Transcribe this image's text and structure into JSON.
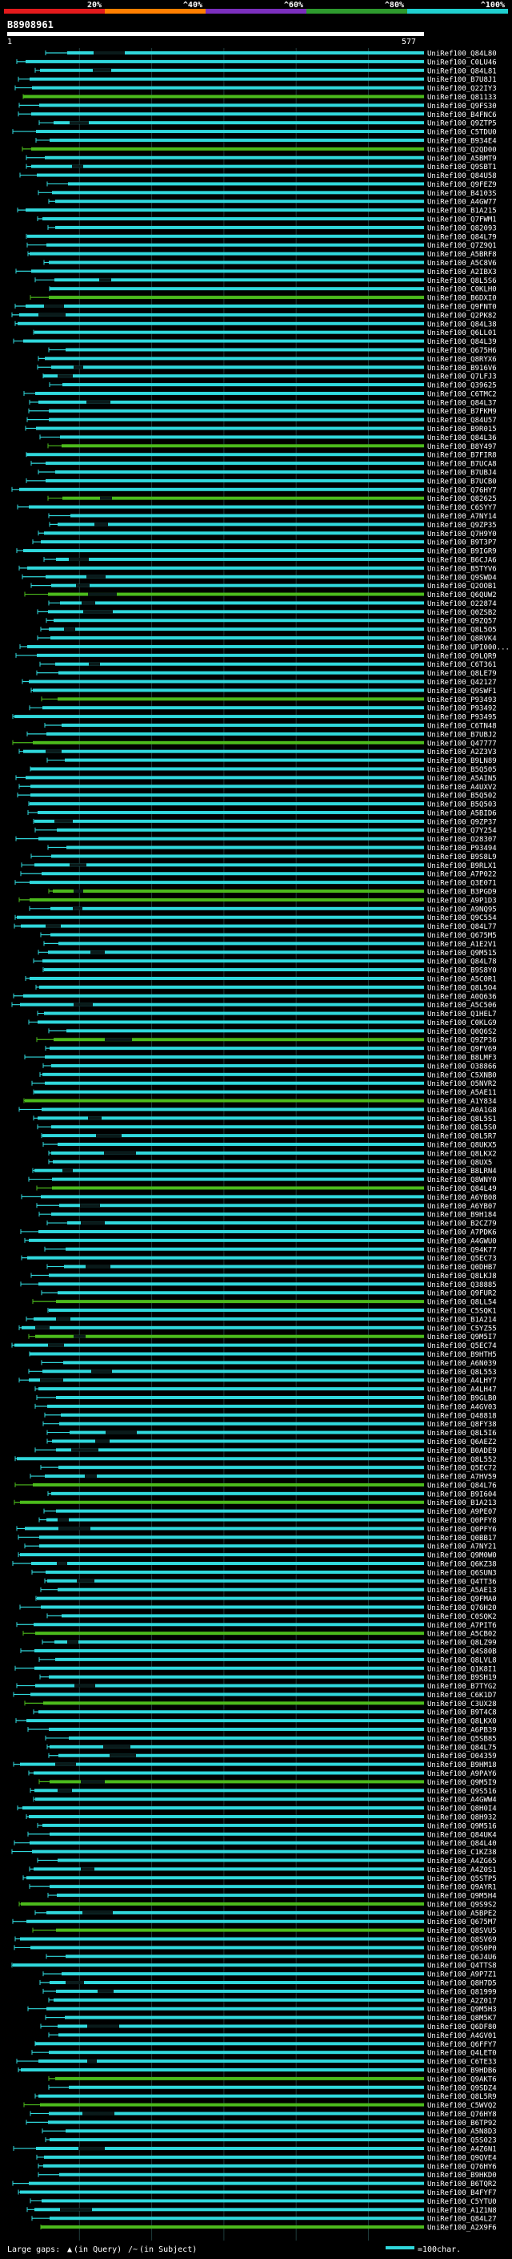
{
  "chart_data": {
    "type": "alignment-overview",
    "query_id": "B8908961",
    "query_range": [
      "1",
      "577"
    ],
    "identity_scale": [
      {
        "label": "20%",
        "color": "#e31a1c"
      },
      {
        "label": "^40%",
        "color": "#ff7f00"
      },
      {
        "label": "^60%",
        "color": "#7b2fbe"
      },
      {
        "label": "^80%",
        "color": "#2e9a2e"
      },
      {
        "label": "^100%",
        "color": "#20d0d0"
      }
    ],
    "colors": {
      "hit": "#30d8dc",
      "hit_alt": "#4cbb1c",
      "dark_segment": "#0a1a1a",
      "background": "#000000",
      "axis": "#ffffff",
      "grid": "#1e3c3c"
    },
    "legend": {
      "large_gaps": "Large gaps:",
      "query_mark": "▲",
      "query_text": "(in Query)",
      "subject_mark": "/~",
      "subject_text": "(in Subject)",
      "scale_text": "=100char."
    },
    "hits": [
      "UniRef100_Q84L80",
      "UniRef100_C0LU46",
      "UniRef100_Q84L81",
      "UniRef100_B7U8J1",
      "UniRef100_Q22IY3",
      "UniRef100_Q81133",
      "UniRef100_Q9FS30",
      "UniRef100_B4FNC6",
      "UniRef100_Q9ZTP5",
      "UniRef100_C5TDU0",
      "UniRef100_B934E4",
      "UniRef100_Q2QD00",
      "UniRef100_A5BMT9",
      "UniRef100_Q9SBT1",
      "UniRef100_Q84U58",
      "UniRef100_Q9FEZ9",
      "UniRef100_B4103S",
      "UniRef100_A4GW77",
      "UniRef100_B1A215",
      "UniRef100_Q7FWM1",
      "UniRef100_Q82093",
      "UniRef100_Q84L79",
      "UniRef100_Q7Z9Q1",
      "UniRef100_A5BRF8",
      "UniRef100_A5C8V6",
      "UniRef100_A2IBX3",
      "UniRef100_Q8L5S6",
      "UniRef100_C0KLH0",
      "UniRef100_B6DXI0",
      "UniRef100_Q9FNT0",
      "UniRef100_Q2PK82",
      "UniRef100_Q84L38",
      "UniRef100_Q6LL01",
      "UniRef100_Q84L39",
      "UniRef100_Q675H6",
      "UniRef100_Q8RYX6",
      "UniRef100_B916V6",
      "UniRef100_Q7LFJ3",
      "UniRef100_Q39625",
      "UniRef100_C6TMC2",
      "UniRef100_Q84L37",
      "UniRef100_B7FKM9",
      "UniRef100_Q84U57",
      "UniRef100_B9R015",
      "UniRef100_Q84L36",
      "UniRef100_B8Y497",
      "UniRef100_B7FIR8",
      "UniRef100_B7UCA8",
      "UniRef100_B7UBJ4",
      "UniRef100_B7UCB0",
      "UniRef100_Q76HY7",
      "UniRef100_Q82625",
      "UniRef100_C6SYY7",
      "UniRef100_A7NY14",
      "UniRef100_Q9ZP35",
      "UniRef100_Q7H9Y0",
      "UniRef100_B9T3P7",
      "UniRef100_B9IGR9",
      "UniRef100_B6CJA6",
      "UniRef100_B5TYV6",
      "UniRef100_Q9SWD4",
      "UniRef100_Q2OOB1",
      "UniRef100_Q6QUW2",
      "UniRef100_O22874",
      "UniRef100_Q0ZSB2",
      "UniRef100_Q9ZQ57",
      "UniRef100_Q8L5O5",
      "UniRef100_Q8RVK4",
      "UniRef100_UPI000...",
      "UniRef100_Q9LQR9",
      "UniRef100_C6T361",
      "UniRef100_Q8LE79",
      "UniRef100_Q42127",
      "UniRef100_Q9SWF1",
      "UniRef100_P93493",
      "UniRef100_P93492",
      "UniRef100_P93495",
      "UniRef100_C6TN48",
      "UniRef100_B7UBJ2",
      "UniRef100_Q47777",
      "UniRef100_A2Z3V3",
      "UniRef100_B9LN89",
      "UniRef100_B5Q505",
      "UniRef100_A5AIN5",
      "UniRef100_A4UXV2",
      "UniRef100_B5Q502",
      "UniRef100_B5Q503",
      "UniRef100_A5BID6",
      "UniRef100_Q9ZP37",
      "UniRef100_Q7Y254",
      "UniRef100_O28307",
      "UniRef100_P93494",
      "UniRef100_B9S8L9",
      "UniRef100_B9RLX1",
      "UniRef100_A7P022",
      "UniRef100_Q3E071",
      "UniRef100_B3PGD9",
      "UniRef100_A9P1D3",
      "UniRef100_A9NQ95",
      "UniRef100_Q9C554",
      "UniRef100_Q84L77",
      "UniRef100_Q675M5",
      "UniRef100_A1E2V1",
      "UniRef100_Q9M515",
      "UniRef100_Q84L78",
      "UniRef100_B9S8Y0",
      "UniRef100_A5C0R1",
      "UniRef100_Q8L5O4",
      "UniRef100_A0Q636",
      "UniRef100_A5C506",
      "UniRef100_Q1HEL7",
      "UniRef100_C0KLG9",
      "UniRef100_Q0Q6S2",
      "UniRef100_Q9ZP36",
      "UniRef100_Q9FV69",
      "UniRef100_B8LMF3",
      "UniRef100_O38866",
      "UniRef100_C5XNB0",
      "UniRef100_O5NVR2",
      "UniRef100_A5AE11",
      "UniRef100_A1Y834",
      "UniRef100_A0A1G8",
      "UniRef100_Q8L5S1",
      "UniRef100_Q8L5S0",
      "UniRef100_Q8L5R7",
      "UniRef100_Q8UKX5",
      "UniRef100_Q8LKX2",
      "UniRef100_Q8UX5",
      "UniRef100_B8LRN4",
      "UniRef100_Q8WNY0",
      "UniRef100_Q84L49",
      "UniRef100_A6YB08",
      "UniRef100_A6YB07",
      "UniRef100_B9H184",
      "UniRef100_B2CZ79",
      "UniRef100_A7PDK6",
      "UniRef100_A4GWU0",
      "UniRef100_Q94K77",
      "UniRef100_Q5EC73",
      "UniRef100_Q0DHB7",
      "UniRef100_Q8LKJ8",
      "UniRef100_Q38885",
      "UniRef100_Q9FUR2",
      "UniRef100_Q8LL54",
      "UniRef100_C5SQK1",
      "UniRef100_B1A214",
      "UniRef100_C5YZ55",
      "UniRef100_Q9M5I7",
      "UniRef100_Q5EC74",
      "UniRef100_B9HTH5",
      "UniRef100_A6N039",
      "UniRef100_Q8L553",
      "UniRef100_A4LHY7",
      "UniRef100_A4LH47",
      "UniRef100_B9GLB0",
      "UniRef100_A4GV03",
      "UniRef100_Q48818",
      "UniRef100_Q8FY38",
      "UniRef100_Q8L5I6",
      "UniRef100_Q6AEZ2",
      "UniRef100_B0ADE9",
      "UniRef100_Q8L552",
      "UniRef100_Q5EC72",
      "UniRef100_A7HV59",
      "UniRef100_Q84L76",
      "UniRef100_B9I604",
      "UniRef100_B1A213",
      "UniRef100_A9PE07",
      "UniRef100_Q0PFY8",
      "UniRef100_Q0PFY6",
      "UniRef100_Q0BB17",
      "UniRef100_A7NY21",
      "UniRef100_Q9M0W0",
      "UniRef100_Q6KZ38",
      "UniRef100_Q6SUN3",
      "UniRef100_Q4TT36",
      "UniRef100_A5AE13",
      "UniRef100_Q9FMA0",
      "UniRef100_Q76H20",
      "UniRef100_C0SQK2",
      "UniRef100_A7PIT6",
      "UniRef100_A5CB02",
      "UniRef100_Q8LZ99",
      "UniRef100_Q4S80B",
      "UniRef100_Q8LVL8",
      "UniRef100_Q1K8I1",
      "UniRef100_B9SH19",
      "UniRef100_B7TYG2",
      "UniRef100_C6K1D7",
      "UniRef100_C3UX28",
      "UniRef100_B9T4C8",
      "UniRef100_Q8LKX0",
      "UniRef100_A6PB39",
      "UniRef100_Q5SB85",
      "UniRef100_Q84L75",
      "UniRef100_O04359",
      "UniRef100_B9HM18",
      "UniRef100_A9PAY6",
      "UniRef100_Q9M5I9",
      "UniRef100_Q9S516",
      "UniRef100_A4GWW4",
      "UniRef100_Q8H0I4",
      "UniRef100_Q8H932",
      "UniRef100_Q9M516",
      "UniRef100_Q84UK4",
      "UniRef100_Q84L40",
      "UniRef100_C1KZ38",
      "UniRef100_A4ZG65",
      "UniRef100_A4Z0S1",
      "UniRef100_Q5STP5",
      "UniRef100_Q9AYR1",
      "UniRef100_Q9M5H4",
      "UniRef100_Q9S9S2",
      "UniRef100_A5BPE2",
      "UniRef100_Q675M7",
      "UniRef100_Q8SVU5",
      "UniRef100_Q8SV69",
      "UniRef100_Q9S0P0",
      "UniRef100_Q6J4U6",
      "UniRef100_Q4TTS8",
      "UniRef100_A9P7Z1",
      "UniRef100_Q8H7D5",
      "UniRef100_Q81999",
      "UniRef100_A2Z017",
      "UniRef100_Q9M5H3",
      "UniRef100_Q8M5K7",
      "UniRef100_Q6DF80",
      "UniRef100_A4GV01",
      "UniRef100_Q6FFY7",
      "UniRef100_Q4LET0",
      "UniRef100_C6TE33",
      "UniRef100_B9HDB6",
      "UniRef100_Q9AKT6",
      "UniRef100_Q9SDZ4",
      "UniRef100_Q8L5R9",
      "UniRef100_C5WVQ2",
      "UniRef100_Q76HY8",
      "UniRef100_B6TP92",
      "UniRef100_A5N8D3",
      "UniRef100_Q5S023",
      "UniRef100_A4Z6N1",
      "UniRef100_Q9QVE4",
      "UniRef100_Q76HY6",
      "UniRef100_B9HKD0",
      "UniRef100_B6TQR2",
      "UniRef100_B4FYF7",
      "UniRef100_C5YTU0",
      "UniRef100_A1Z1N8",
      "UniRef100_Q84L27",
      "UniRef100_A2X9F6"
    ]
  }
}
